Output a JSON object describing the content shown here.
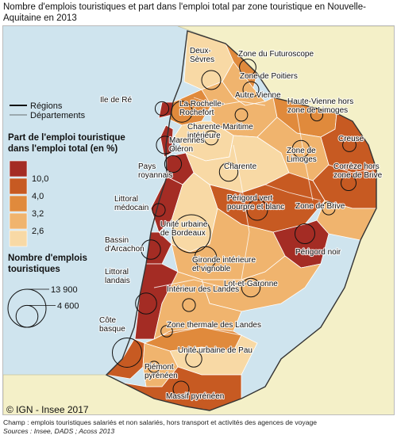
{
  "title": "Nombre d'emplois touristiques et part dans l'emploi total par zone touristique en Nouvelle-Aquitaine en 2013",
  "legend": {
    "regions_label": "Régions",
    "departements_label": "Départements",
    "share_title_line1": "Part de l'emploi touristique",
    "share_title_line2": "dans l'emploi total (en %)",
    "classes": [
      {
        "label": "10,0",
        "color": "#a42c24"
      },
      {
        "label": "4,0",
        "color": "#c75a22"
      },
      {
        "label": "3,2",
        "color": "#e08a3c"
      },
      {
        "label": "2,6",
        "color": "#f0b46e"
      },
      {
        "label": "",
        "color": "#f8d9a5"
      }
    ],
    "size_title_line1": "Nombre d'emplois",
    "size_title_line2": "touristiques",
    "size_values": [
      "13 900",
      "4 600"
    ]
  },
  "zones": [
    {
      "name": "Deux-Sèvres",
      "cls": 4,
      "jobs": 3500
    },
    {
      "name": "Zone du Futuroscope",
      "cls": 2,
      "jobs": 2600
    },
    {
      "name": "Zone de Poitiers",
      "cls": 3,
      "jobs": 2400
    },
    {
      "name": "Ile de Ré",
      "cls": 0,
      "jobs": 1800
    },
    {
      "name": "La Rochelle-Rochefort",
      "cls": 2,
      "jobs": 4200
    },
    {
      "name": "Autre Vienne",
      "cls": 3,
      "jobs": 1500
    },
    {
      "name": "Haute-Vienne hors zone de Limoges",
      "cls": 2,
      "jobs": 1400
    },
    {
      "name": "Charente-Maritime intérieure",
      "cls": 4,
      "jobs": 1900
    },
    {
      "name": "Marennes Oléron",
      "cls": 0,
      "jobs": 3000
    },
    {
      "name": "Creuse",
      "cls": 1,
      "jobs": 1700
    },
    {
      "name": "Zone de Limoges",
      "cls": 3,
      "jobs": 2800
    },
    {
      "name": "Charente",
      "cls": 4,
      "jobs": 3300
    },
    {
      "name": "Pays royannais",
      "cls": 0,
      "jobs": 2700
    },
    {
      "name": "Corrèze hors zone de Brive",
      "cls": 1,
      "jobs": 2200
    },
    {
      "name": "Littoral médocain",
      "cls": 0,
      "jobs": 1600
    },
    {
      "name": "Périgord vert pourpre et blanc",
      "cls": 1,
      "jobs": 4100
    },
    {
      "name": "Zone de Brive",
      "cls": 3,
      "jobs": 1600
    },
    {
      "name": "Unité urbaine de Bordeaux",
      "cls": 4,
      "jobs": 13900
    },
    {
      "name": "Bassin d'Arcachon",
      "cls": 0,
      "jobs": 3600
    },
    {
      "name": "Périgord noir",
      "cls": 0,
      "jobs": 3800
    },
    {
      "name": "Gironde intérieure et vignoble",
      "cls": 3,
      "jobs": 4600
    },
    {
      "name": "Lot-et-Garonne",
      "cls": 3,
      "jobs": 3300
    },
    {
      "name": "Littoral landais",
      "cls": 0,
      "jobs": 4300
    },
    {
      "name": "Intérieur des Landes",
      "cls": 3,
      "jobs": 1600
    },
    {
      "name": "Côte basque",
      "cls": 1,
      "jobs": 8300
    },
    {
      "name": "Zone thermale des Landes",
      "cls": 2,
      "jobs": 1300
    },
    {
      "name": "Unité urbaine de Pau",
      "cls": 4,
      "jobs": 2500
    },
    {
      "name": "Piémont pyrénéen",
      "cls": 3,
      "jobs": 1200
    },
    {
      "name": "Massif pyrénéen",
      "cls": 1,
      "jobs": 2400
    }
  ],
  "credit": "© IGN - Insee 2017",
  "footer_scope": "Champ : emplois touristiques salariés et non salariés, hors transport et activités des agences de voyage",
  "footer_sources": "Sources : Insee, DADS ; Acoss 2013"
}
